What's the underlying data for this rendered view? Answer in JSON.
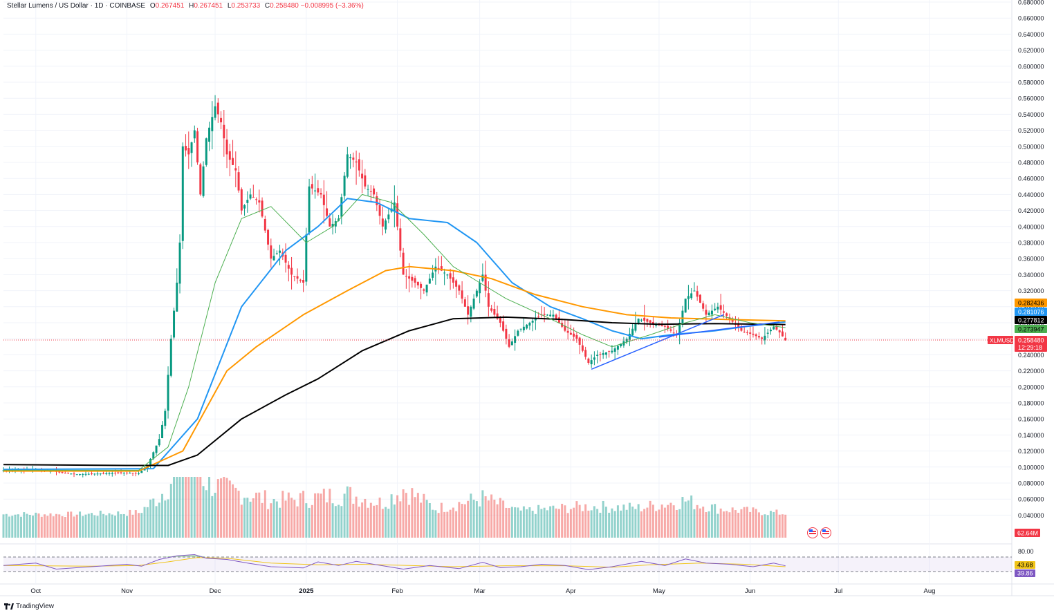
{
  "header": {
    "symbol": "Stellar Lumens / US Dollar · 1D · COINBASE",
    "o_label": "O",
    "o_value": "0.267451",
    "h_label": "H",
    "h_value": "0.267451",
    "l_label": "L",
    "l_value": "0.253733",
    "c_label": "C",
    "c_value": "0.258480",
    "change": "−0.008995 (−3.36%)"
  },
  "branding": {
    "text": "TradingView"
  },
  "chart_data": {
    "type": "candlestick",
    "title": "Stellar Lumens / US Dollar · 1D · COINBASE",
    "grid": true,
    "price_axis": {
      "side": "right",
      "ticks": [
        "0.680000",
        "0.660000",
        "0.640000",
        "0.620000",
        "0.600000",
        "0.580000",
        "0.560000",
        "0.540000",
        "0.520000",
        "0.500000",
        "0.480000",
        "0.460000",
        "0.440000",
        "0.420000",
        "0.400000",
        "0.380000",
        "0.360000",
        "0.340000",
        "0.320000",
        "0.300000",
        "0.280000",
        "0.260000",
        "0.240000",
        "0.220000",
        "0.200000",
        "0.180000",
        "0.160000",
        "0.140000",
        "0.120000",
        "0.100000",
        "0.080000",
        "0.060000",
        "0.040000"
      ],
      "range": [
        0.03,
        0.68
      ]
    },
    "time_axis": {
      "ticks": [
        "Oct",
        "Nov",
        "Dec",
        "2025",
        "Feb",
        "Mar",
        "Apr",
        "May",
        "Jun",
        "Jul",
        "Aug"
      ],
      "tick_dates": [
        "2024-10-01",
        "2024-11-01",
        "2024-12-01",
        "2025-01-01",
        "2025-02-01",
        "2025-03-01",
        "2025-04-01",
        "2025-05-01",
        "2025-06-01",
        "2025-07-01",
        "2025-08-01"
      ],
      "start_date": "2024-09-20",
      "end_date": "2025-08-29"
    },
    "price_keypoints": [
      [
        "2024-09-20",
        0.096
      ],
      [
        "2024-10-01",
        0.097
      ],
      [
        "2024-10-15",
        0.091
      ],
      [
        "2024-11-01",
        0.093
      ],
      [
        "2024-11-05",
        0.092
      ],
      [
        "2024-11-08",
        0.102
      ],
      [
        "2024-11-12",
        0.135
      ],
      [
        "2024-11-14",
        0.17
      ],
      [
        "2024-11-16",
        0.26
      ],
      [
        "2024-11-18",
        0.33
      ],
      [
        "2024-11-19",
        0.38
      ],
      [
        "2024-11-20",
        0.5
      ],
      [
        "2024-11-22",
        0.49
      ],
      [
        "2024-11-24",
        0.52
      ],
      [
        "2024-11-26",
        0.44
      ],
      [
        "2024-11-28",
        0.51
      ],
      [
        "2024-12-01",
        0.55
      ],
      [
        "2024-12-03",
        0.53
      ],
      [
        "2024-12-05",
        0.49
      ],
      [
        "2024-12-08",
        0.47
      ],
      [
        "2024-12-10",
        0.42
      ],
      [
        "2024-12-13",
        0.44
      ],
      [
        "2024-12-16",
        0.43
      ],
      [
        "2024-12-20",
        0.36
      ],
      [
        "2024-12-23",
        0.37
      ],
      [
        "2024-12-27",
        0.34
      ],
      [
        "2024-12-31",
        0.33
      ],
      [
        "2025-01-02",
        0.45
      ],
      [
        "2025-01-06",
        0.44
      ],
      [
        "2025-01-09",
        0.4
      ],
      [
        "2025-01-12",
        0.41
      ],
      [
        "2025-01-15",
        0.49
      ],
      [
        "2025-01-18",
        0.48
      ],
      [
        "2025-01-21",
        0.45
      ],
      [
        "2025-01-24",
        0.44
      ],
      [
        "2025-01-27",
        0.4
      ],
      [
        "2025-01-31",
        0.43
      ],
      [
        "2025-02-03",
        0.34
      ],
      [
        "2025-02-07",
        0.33
      ],
      [
        "2025-02-10",
        0.32
      ],
      [
        "2025-02-14",
        0.35
      ],
      [
        "2025-02-18",
        0.34
      ],
      [
        "2025-02-22",
        0.32
      ],
      [
        "2025-02-25",
        0.29
      ],
      [
        "2025-03-02",
        0.34
      ],
      [
        "2025-03-04",
        0.3
      ],
      [
        "2025-03-08",
        0.28
      ],
      [
        "2025-03-11",
        0.25
      ],
      [
        "2025-03-14",
        0.27
      ],
      [
        "2025-03-18",
        0.28
      ],
      [
        "2025-03-22",
        0.29
      ],
      [
        "2025-03-26",
        0.29
      ],
      [
        "2025-03-30",
        0.27
      ],
      [
        "2025-04-03",
        0.26
      ],
      [
        "2025-04-07",
        0.23
      ],
      [
        "2025-04-10",
        0.24
      ],
      [
        "2025-04-15",
        0.245
      ],
      [
        "2025-04-20",
        0.26
      ],
      [
        "2025-04-24",
        0.285
      ],
      [
        "2025-04-28",
        0.28
      ],
      [
        "2025-05-03",
        0.275
      ],
      [
        "2025-05-07",
        0.265
      ],
      [
        "2025-05-10",
        0.31
      ],
      [
        "2025-05-13",
        0.32
      ],
      [
        "2025-05-17",
        0.29
      ],
      [
        "2025-05-21",
        0.3
      ],
      [
        "2025-05-25",
        0.285
      ],
      [
        "2025-05-29",
        0.27
      ],
      [
        "2025-06-02",
        0.265
      ],
      [
        "2025-06-05",
        0.26
      ],
      [
        "2025-06-09",
        0.275
      ],
      [
        "2025-06-11",
        0.268
      ],
      [
        "2025-06-13",
        0.258
      ]
    ],
    "volume_keypoints": [
      [
        "2024-09-20",
        0.008
      ],
      [
        "2024-10-15",
        0.008
      ],
      [
        "2024-11-05",
        0.01
      ],
      [
        "2024-11-12",
        0.03
      ],
      [
        "2024-11-16",
        0.05
      ],
      [
        "2024-11-20",
        0.075
      ],
      [
        "2024-11-22",
        0.11
      ],
      [
        "2024-11-24",
        0.07
      ],
      [
        "2024-11-28",
        0.05
      ],
      [
        "2024-12-03",
        0.04
      ],
      [
        "2024-12-10",
        0.035
      ],
      [
        "2024-12-20",
        0.025
      ],
      [
        "2025-01-02",
        0.028
      ],
      [
        "2025-01-15",
        0.033
      ],
      [
        "2025-01-27",
        0.022
      ],
      [
        "2025-02-03",
        0.04
      ],
      [
        "2025-02-14",
        0.015
      ],
      [
        "2025-03-02",
        0.028
      ],
      [
        "2025-03-14",
        0.012
      ],
      [
        "2025-04-07",
        0.018
      ],
      [
        "2025-04-24",
        0.016
      ],
      [
        "2025-05-10",
        0.025
      ],
      [
        "2025-05-21",
        0.015
      ],
      [
        "2025-06-13",
        0.009
      ]
    ],
    "moving_averages": [
      {
        "color": "#2196f3",
        "last_value": "0.281076",
        "points": [
          [
            "2024-09-20",
            0.097
          ],
          [
            "2024-11-10",
            0.098
          ],
          [
            "2024-11-25",
            0.16
          ],
          [
            "2024-12-10",
            0.3
          ],
          [
            "2024-12-25",
            0.37
          ],
          [
            "2025-01-05",
            0.4
          ],
          [
            "2025-01-15",
            0.435
          ],
          [
            "2025-01-25",
            0.43
          ],
          [
            "2025-02-05",
            0.41
          ],
          [
            "2025-02-18",
            0.405
          ],
          [
            "2025-02-28",
            0.38
          ],
          [
            "2025-03-12",
            0.33
          ],
          [
            "2025-03-25",
            0.3
          ],
          [
            "2025-04-05",
            0.285
          ],
          [
            "2025-04-15",
            0.27
          ],
          [
            "2025-04-25",
            0.26
          ],
          [
            "2025-05-05",
            0.265
          ],
          [
            "2025-05-20",
            0.27
          ],
          [
            "2025-05-30",
            0.275
          ],
          [
            "2025-06-13",
            0.281
          ]
        ]
      },
      {
        "color": "#ff9800",
        "last_value": "0.282436",
        "points": [
          [
            "2024-09-20",
            0.095
          ],
          [
            "2024-11-05",
            0.095
          ],
          [
            "2024-11-20",
            0.12
          ],
          [
            "2024-12-05",
            0.22
          ],
          [
            "2024-12-15",
            0.25
          ],
          [
            "2024-12-31",
            0.29
          ],
          [
            "2025-01-15",
            0.32
          ],
          [
            "2025-01-28",
            0.345
          ],
          [
            "2025-02-05",
            0.35
          ],
          [
            "2025-02-20",
            0.345
          ],
          [
            "2025-03-05",
            0.335
          ],
          [
            "2025-03-20",
            0.315
          ],
          [
            "2025-04-05",
            0.3
          ],
          [
            "2025-04-20",
            0.29
          ],
          [
            "2025-05-05",
            0.286
          ],
          [
            "2025-05-25",
            0.284
          ],
          [
            "2025-06-13",
            0.2824
          ]
        ]
      },
      {
        "color": "#000000",
        "last_value": "0.277812",
        "points": [
          [
            "2024-09-20",
            0.103
          ],
          [
            "2024-11-01",
            0.102
          ],
          [
            "2024-11-15",
            0.102
          ],
          [
            "2024-11-25",
            0.115
          ],
          [
            "2024-12-10",
            0.16
          ],
          [
            "2024-12-25",
            0.19
          ],
          [
            "2025-01-05",
            0.21
          ],
          [
            "2025-01-20",
            0.245
          ],
          [
            "2025-02-05",
            0.27
          ],
          [
            "2025-02-20",
            0.285
          ],
          [
            "2025-03-10",
            0.287
          ],
          [
            "2025-03-30",
            0.284
          ],
          [
            "2025-04-15",
            0.28
          ],
          [
            "2025-05-01",
            0.278
          ],
          [
            "2025-05-20",
            0.279
          ],
          [
            "2025-06-13",
            0.2778
          ]
        ]
      },
      {
        "color": "#4caf50",
        "last_value": "0.273947",
        "points": [
          [
            "2024-09-20",
            0.096
          ],
          [
            "2024-11-05",
            0.096
          ],
          [
            "2024-11-15",
            0.125
          ],
          [
            "2024-11-22",
            0.2
          ],
          [
            "2024-12-01",
            0.33
          ],
          [
            "2024-12-10",
            0.41
          ],
          [
            "2024-12-20",
            0.425
          ],
          [
            "2025-01-01",
            0.38
          ],
          [
            "2025-01-10",
            0.4
          ],
          [
            "2025-01-20",
            0.44
          ],
          [
            "2025-01-30",
            0.43
          ],
          [
            "2025-02-10",
            0.39
          ],
          [
            "2025-02-20",
            0.35
          ],
          [
            "2025-03-01",
            0.33
          ],
          [
            "2025-03-10",
            0.31
          ],
          [
            "2025-03-25",
            0.285
          ],
          [
            "2025-04-05",
            0.265
          ],
          [
            "2025-04-15",
            0.25
          ],
          [
            "2025-04-28",
            0.265
          ],
          [
            "2025-05-10",
            0.28
          ],
          [
            "2025-05-20",
            0.29
          ],
          [
            "2025-06-01",
            0.28
          ],
          [
            "2025-06-13",
            0.2739
          ]
        ]
      }
    ],
    "trendlines": [
      {
        "color": "#2962ff",
        "from": [
          "2025-04-08",
          0.222
        ],
        "to": [
          "2025-05-23",
          0.29
        ]
      },
      {
        "color": "#2962ff",
        "from": [
          "2025-05-01",
          0.262
        ],
        "to": [
          "2025-06-11",
          0.281
        ]
      }
    ],
    "price_labels": [
      {
        "text": "0.282436",
        "bg": "#ff9800",
        "fg": "#000000"
      },
      {
        "text": "0.281076",
        "bg": "#2196f3",
        "fg": "#ffffff"
      },
      {
        "text": "0.277812",
        "bg": "#000000",
        "fg": "#ffffff"
      },
      {
        "text": "0.273947",
        "bg": "#4caf50",
        "fg": "#000000"
      }
    ],
    "current_price": {
      "symbol": "XLMUSD",
      "value": "0.258480",
      "countdown": "12:29:18",
      "color": "#f23645"
    },
    "volume_label": {
      "text": "62.64M",
      "color": "#f23645"
    },
    "rsi": {
      "upper_level": "80.00",
      "lower_level": 20,
      "value_label": "43.68",
      "ma_label": "39.86",
      "rsi_color": "#7e57c2",
      "ma_color": "#f0c419",
      "points": [
        [
          "2024-09-20",
          45
        ],
        [
          "2024-10-01",
          55
        ],
        [
          "2024-10-08",
          30
        ],
        [
          "2024-10-20",
          40
        ],
        [
          "2024-11-01",
          50
        ],
        [
          "2024-11-06",
          42
        ],
        [
          "2024-11-12",
          70
        ],
        [
          "2024-11-18",
          85
        ],
        [
          "2024-11-24",
          90
        ],
        [
          "2024-11-28",
          75
        ],
        [
          "2024-12-05",
          70
        ],
        [
          "2024-12-12",
          55
        ],
        [
          "2024-12-20",
          40
        ],
        [
          "2024-12-31",
          35
        ],
        [
          "2025-01-05",
          60
        ],
        [
          "2025-01-12",
          45
        ],
        [
          "2025-01-18",
          62
        ],
        [
          "2025-01-25",
          48
        ],
        [
          "2025-02-03",
          30
        ],
        [
          "2025-02-12",
          45
        ],
        [
          "2025-02-22",
          32
        ],
        [
          "2025-03-02",
          58
        ],
        [
          "2025-03-08",
          36
        ],
        [
          "2025-03-15",
          40
        ],
        [
          "2025-03-22",
          50
        ],
        [
          "2025-03-30",
          45
        ],
        [
          "2025-04-07",
          28
        ],
        [
          "2025-04-15",
          40
        ],
        [
          "2025-04-25",
          62
        ],
        [
          "2025-05-03",
          45
        ],
        [
          "2025-05-10",
          72
        ],
        [
          "2025-05-17",
          55
        ],
        [
          "2025-05-25",
          50
        ],
        [
          "2025-06-02",
          40
        ],
        [
          "2025-06-09",
          55
        ],
        [
          "2025-06-13",
          43.68
        ]
      ],
      "ma_points": [
        [
          "2024-09-20",
          45
        ],
        [
          "2024-10-20",
          42
        ],
        [
          "2024-11-05",
          45
        ],
        [
          "2024-11-15",
          60
        ],
        [
          "2024-11-25",
          78
        ],
        [
          "2024-12-05",
          75
        ],
        [
          "2024-12-20",
          55
        ],
        [
          "2025-01-05",
          48
        ],
        [
          "2025-01-20",
          50
        ],
        [
          "2025-02-05",
          45
        ],
        [
          "2025-02-20",
          40
        ],
        [
          "2025-03-10",
          44
        ],
        [
          "2025-03-30",
          44
        ],
        [
          "2025-04-15",
          38
        ],
        [
          "2025-04-28",
          48
        ],
        [
          "2025-05-15",
          55
        ],
        [
          "2025-05-30",
          50
        ],
        [
          "2025-06-13",
          39.86
        ]
      ]
    }
  }
}
